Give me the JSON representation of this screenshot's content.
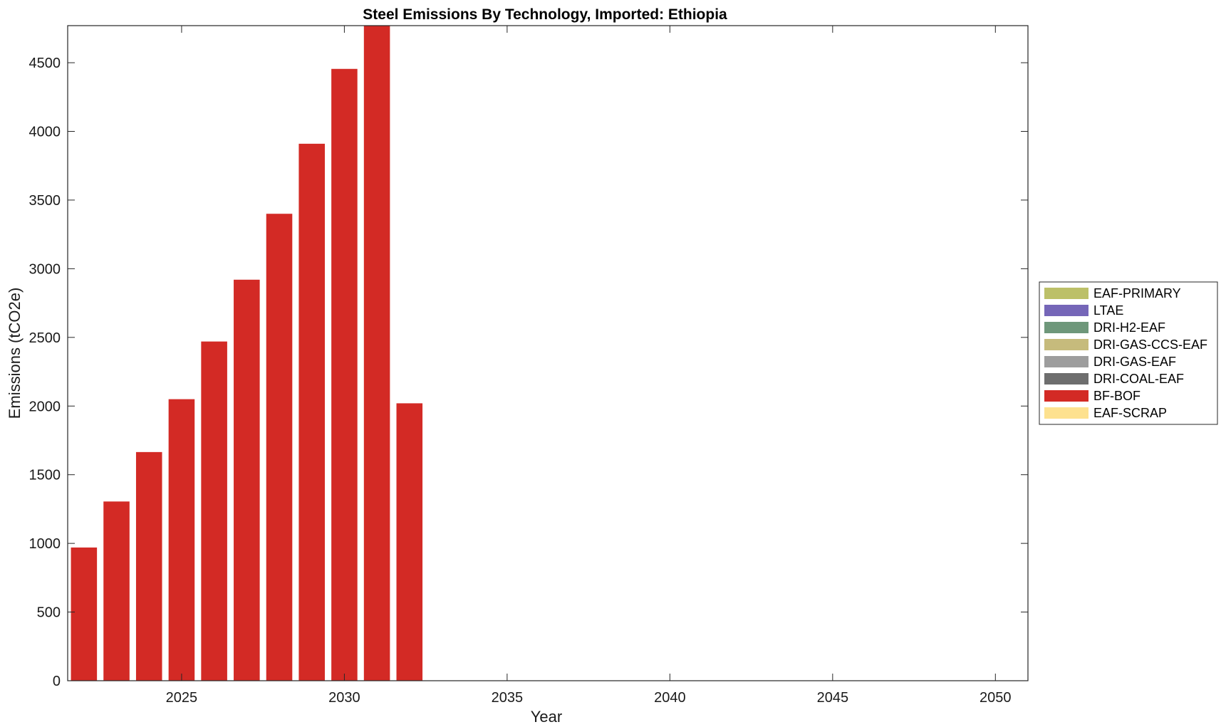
{
  "chart_data": {
    "type": "bar",
    "stacked": true,
    "title": "Steel Emissions By Technology, Imported: Ethiopia",
    "xlabel": "Year",
    "ylabel": "Emissions (tCO2e)",
    "xlim": [
      2021.5,
      2051
    ],
    "ylim": [
      0,
      4770
    ],
    "xticks": [
      2025,
      2030,
      2035,
      2040,
      2045,
      2050
    ],
    "yticks": [
      0,
      500,
      1000,
      1500,
      2000,
      2500,
      3000,
      3500,
      4000,
      4500
    ],
    "grid": false,
    "legend_position": "right",
    "categories": [
      2022,
      2023,
      2024,
      2025,
      2026,
      2027,
      2028,
      2029,
      2030,
      2031,
      2032
    ],
    "series": [
      {
        "name": "EAF-PRIMARY",
        "color": "#bcc068",
        "values": [
          0,
          0,
          0,
          0,
          0,
          0,
          0,
          0,
          0,
          0,
          0
        ]
      },
      {
        "name": "LTAE",
        "color": "#7566b8",
        "values": [
          0,
          0,
          0,
          0,
          0,
          0,
          0,
          0,
          0,
          0,
          0
        ]
      },
      {
        "name": "DRI-H2-EAF",
        "color": "#6e977a",
        "values": [
          0,
          0,
          0,
          0,
          0,
          0,
          0,
          0,
          0,
          0,
          0
        ]
      },
      {
        "name": "DRI-GAS-CCS-EAF",
        "color": "#c6bb7c",
        "values": [
          0,
          0,
          0,
          0,
          0,
          0,
          0,
          0,
          0,
          0,
          0
        ]
      },
      {
        "name": "DRI-GAS-EAF",
        "color": "#9d9d9d",
        "values": [
          0,
          0,
          0,
          0,
          0,
          0,
          0,
          0,
          0,
          0,
          0
        ]
      },
      {
        "name": "DRI-COAL-EAF",
        "color": "#6e6e6e",
        "values": [
          0,
          0,
          0,
          0,
          0,
          0,
          0,
          0,
          0,
          0,
          0
        ]
      },
      {
        "name": "BF-BOF",
        "color": "#d32a25",
        "values": [
          970,
          1305,
          1665,
          2050,
          2470,
          2920,
          3400,
          3910,
          4455,
          4770,
          2020
        ]
      },
      {
        "name": "EAF-SCRAP",
        "color": "#fde18f",
        "values": [
          0,
          0,
          0,
          0,
          0,
          0,
          0,
          0,
          0,
          0,
          0
        ]
      }
    ]
  }
}
